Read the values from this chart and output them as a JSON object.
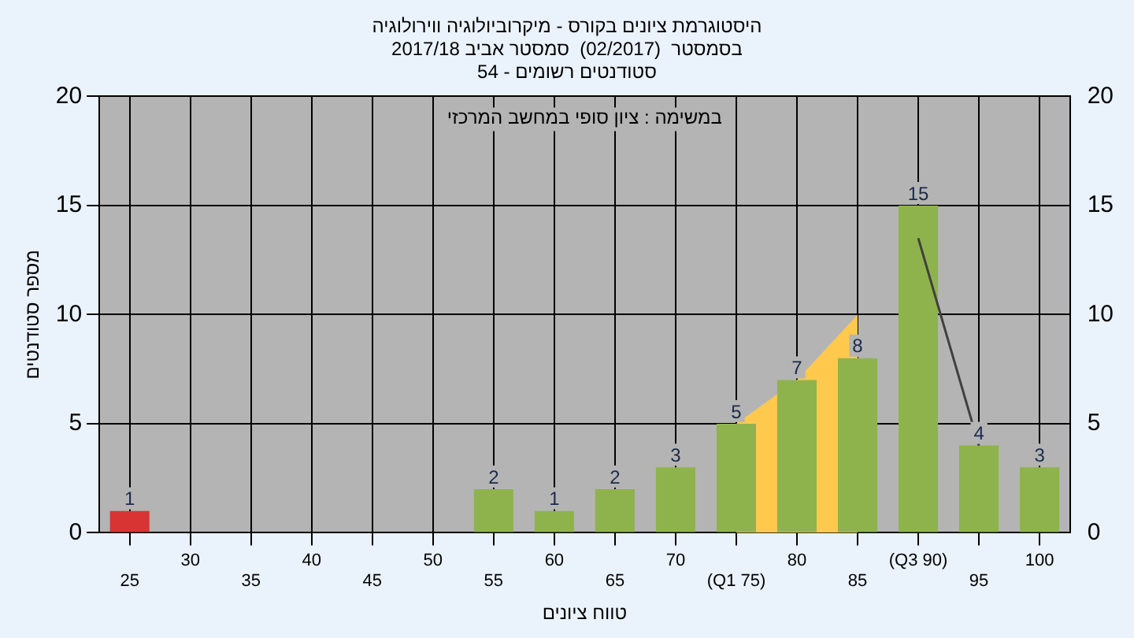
{
  "chart_data": {
    "type": "bar",
    "title": [
      "היסטוגרמת ציונים בקורס - מיקרוביולוגיה ווירולוגיה",
      "בסמסטר  (02/2017)  סמסטר אביב 2017/18",
      "סטודנטים רשומים - 54"
    ],
    "xlabel": "טווח ציונים",
    "ylabel": "מספר סטודנטים",
    "annotations": [
      "במשימה : ציון סופי במחשב המרכזי"
    ],
    "categories": [
      "25",
      "30",
      "35",
      "40",
      "45",
      "50",
      "55",
      "60",
      "65",
      "70",
      "(Q1 75)",
      "80",
      "85",
      "(Q3 90)",
      "95",
      "100"
    ],
    "series": [
      {
        "values": [
          1,
          null,
          null,
          null,
          null,
          null,
          2,
          1,
          2,
          3,
          5,
          7,
          8,
          15,
          4,
          3
        ],
        "value_labels": [
          "1",
          null,
          null,
          null,
          null,
          null,
          "2",
          "1",
          "2",
          "3",
          "5",
          "7",
          "8",
          "15",
          "4",
          "3"
        ],
        "colors": [
          "#d83434",
          "#8fb34c",
          "#8fb34c",
          "#8fb34c",
          "#8fb34c",
          "#8fb34c",
          "#8fb34c",
          "#8fb34c",
          "#8fb34c",
          "#8fb34c",
          "#8fb34c",
          "#8fb34c",
          "#8fb34c",
          "#8fb34c",
          "#8fb34c",
          "#8fb34c"
        ]
      },
      {
        "type": "area",
        "color": "#ffc94d",
        "values": [
          null,
          null,
          null,
          null,
          null,
          null,
          null,
          null,
          null,
          null,
          5,
          7,
          10,
          null,
          null,
          null
        ]
      },
      {
        "type": "line",
        "color": "#404040",
        "values": [
          null,
          null,
          null,
          null,
          null,
          null,
          null,
          null,
          null,
          null,
          null,
          null,
          null,
          13.5,
          4,
          null
        ]
      }
    ],
    "ylim": [
      0,
      20
    ],
    "yticks": [
      0,
      5,
      10,
      15,
      20
    ],
    "y2lim": [
      0,
      20
    ],
    "y2ticks": [
      0,
      5,
      10,
      15,
      20
    ],
    "grid": true,
    "legend": false
  }
}
